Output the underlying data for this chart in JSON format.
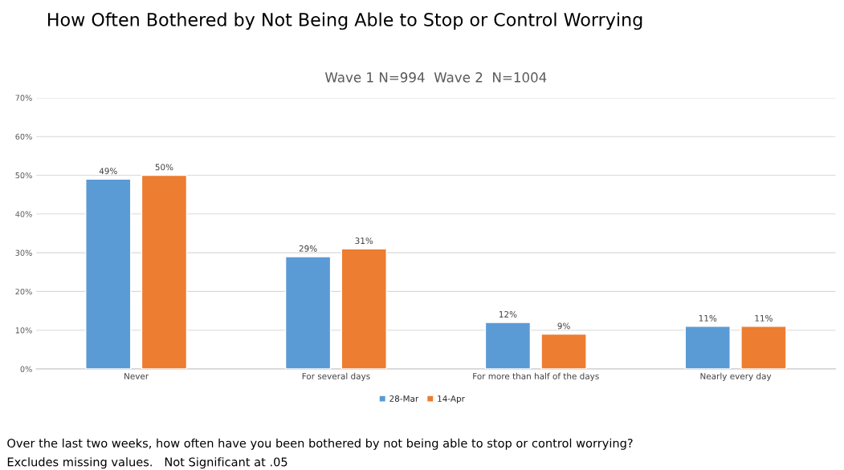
{
  "chart_data": {
    "type": "bar",
    "title": "How Often Bothered by Not Being Able to Stop or Control Worrying",
    "subtitle": "Wave 1 N=994  Wave 2  N=1004",
    "categories": [
      "Never",
      "For several days",
      "For more than half of the days",
      "Nearly every day"
    ],
    "series": [
      {
        "name": "28-Mar",
        "color": "#5b9bd5",
        "values": [
          49,
          29,
          12,
          11
        ],
        "value_labels": [
          "49%",
          "29%",
          "12%",
          "11%"
        ]
      },
      {
        "name": "14-Apr",
        "color": "#ed7d31",
        "values": [
          50,
          31,
          9,
          11
        ],
        "value_labels": [
          "50%",
          "31%",
          "9%",
          "11%"
        ]
      }
    ],
    "ylim": [
      0,
      70
    ],
    "yticks": [
      {
        "value": 0,
        "label": "0%"
      },
      {
        "value": 10,
        "label": "10%"
      },
      {
        "value": 20,
        "label": "20%"
      },
      {
        "value": 30,
        "label": "30%"
      },
      {
        "value": 40,
        "label": "40%"
      },
      {
        "value": 50,
        "label": "50%"
      },
      {
        "value": 60,
        "label": "60%"
      },
      {
        "value": 70,
        "label": "70%"
      }
    ],
    "grid": "y",
    "legend": "bottom",
    "annotations": [
      "Over the last two weeks, how often have you been bothered by not being able to stop or control worrying?",
      "Excludes missing values.   Not Significant at .05"
    ]
  }
}
